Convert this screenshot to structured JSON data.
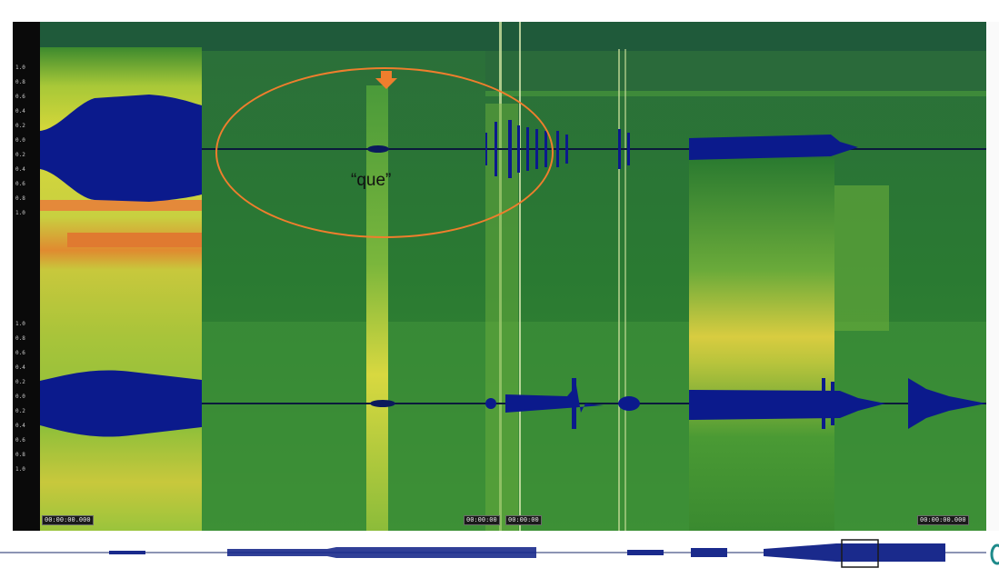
{
  "annotation": {
    "label": "“que”",
    "marker": "down-arrow-icon"
  },
  "axis": {
    "channel1_ticks": [
      "1.0",
      "0.8",
      "0.6",
      "0.4",
      "0.2",
      "0.0",
      "0.2",
      "0.4",
      "0.6",
      "0.8",
      "1.0"
    ],
    "channel2_ticks": [
      "1.0",
      "0.8",
      "0.6",
      "0.4",
      "0.2",
      "0.0",
      "0.2",
      "0.4",
      "0.6",
      "0.8",
      "1.0"
    ]
  },
  "readouts": {
    "left": "00:00:00.000",
    "mid1": "00:00:00",
    "mid2": "00:00:00",
    "right": "00:00:00.000"
  },
  "colors": {
    "annotation": "#ef7e2d",
    "waveform": "#0b1a8c",
    "spectrogram_base": "#1f6f2d",
    "spectrogram_hot": "#f07a2a"
  },
  "icons": {
    "scroll_handle": "scroll-handle-icon"
  }
}
